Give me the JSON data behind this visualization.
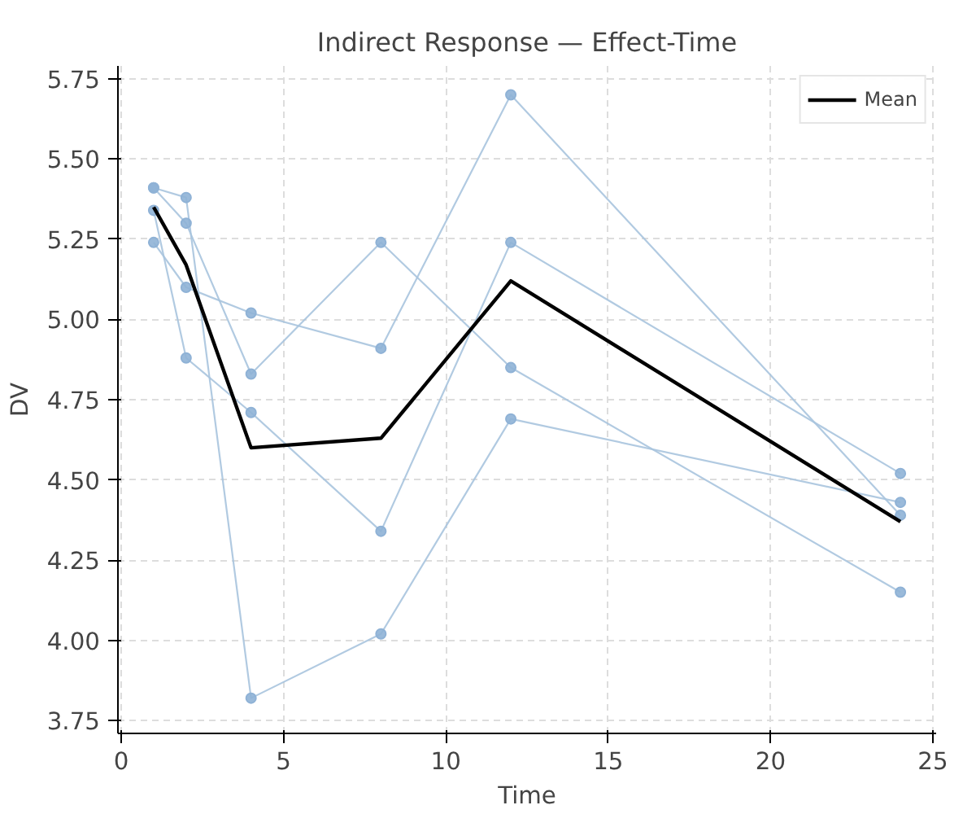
{
  "chart_data": {
    "type": "line",
    "title": "Indirect Response — Effect-Time",
    "xlabel": "Time",
    "ylabel": "DV",
    "x": [
      1,
      2,
      4,
      8,
      12,
      24
    ],
    "series": [
      {
        "color": "#a9c4de",
        "marker": "circle",
        "values": [
          5.41,
          5.38,
          3.82,
          4.02,
          4.69,
          4.43
        ]
      },
      {
        "color": "#a9c4de",
        "marker": "circle",
        "values": [
          5.41,
          5.3,
          4.83,
          5.24,
          4.85,
          4.15
        ]
      },
      {
        "color": "#a9c4de",
        "marker": "circle",
        "values": [
          5.34,
          4.88,
          4.71,
          4.34,
          5.24,
          4.52
        ]
      },
      {
        "color": "#a9c4de",
        "marker": "circle",
        "values": [
          5.24,
          5.1,
          5.02,
          4.91,
          5.7,
          4.39
        ]
      },
      {
        "name": "Mean",
        "color": "#000000",
        "marker": "none",
        "values": [
          5.35,
          5.17,
          4.6,
          4.63,
          5.12,
          4.37
        ]
      }
    ],
    "xlim": [
      -0.1,
      25.1
    ],
    "xticks": [
      0,
      5,
      10,
      15,
      20,
      25
    ],
    "ylim": [
      3.71,
      5.79
    ],
    "yticks": [
      {
        "value": 3.75,
        "label": "3.75"
      },
      {
        "value": 4.0,
        "label": "4.00"
      },
      {
        "value": 4.25,
        "label": "4.25"
      },
      {
        "value": 4.5,
        "label": "4.50"
      },
      {
        "value": 4.75,
        "label": "4.75"
      },
      {
        "value": 5.0,
        "label": "5.00"
      },
      {
        "value": 5.25,
        "label": "5.25"
      },
      {
        "value": 5.5,
        "label": "5.50"
      },
      {
        "value": 5.75,
        "label": "5.75"
      }
    ],
    "grid": true,
    "legend": "top right",
    "line_style": "solid"
  }
}
